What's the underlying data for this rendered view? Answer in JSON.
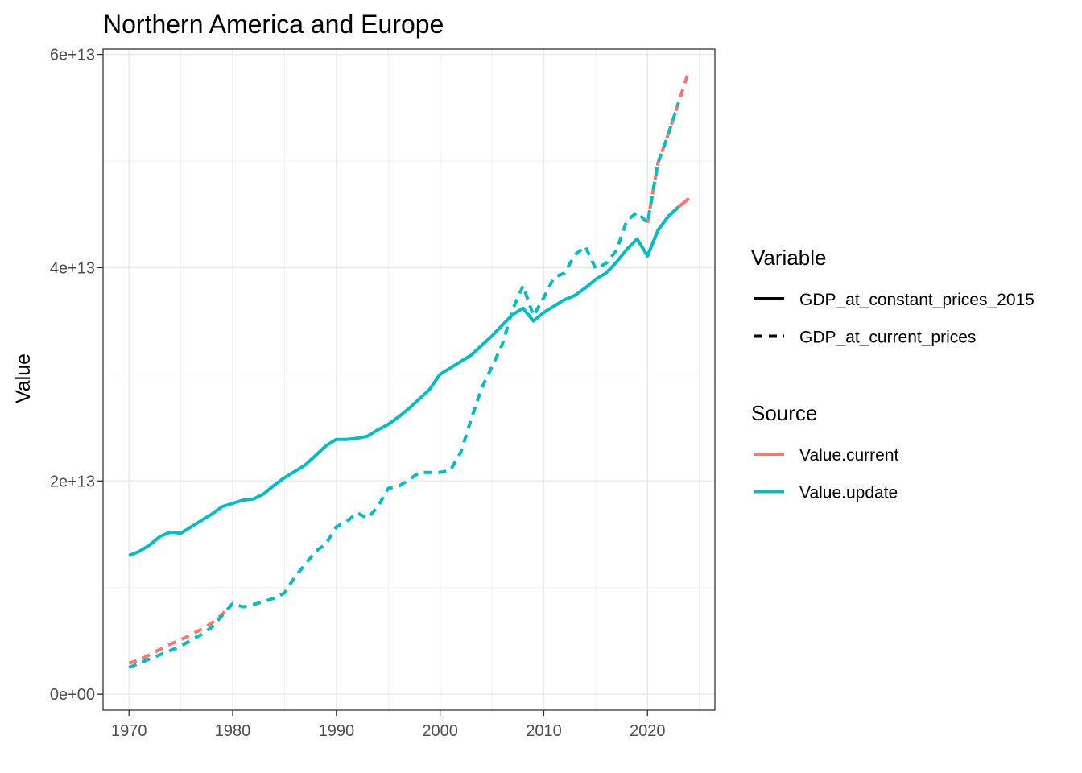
{
  "chart_data": {
    "type": "line",
    "title": "Northern America and Europe",
    "xlabel": "",
    "ylabel": "Value",
    "xlim": [
      1967.5,
      2026.5
    ],
    "ylim": [
      -1500000000000.0,
      60500000000000.0
    ],
    "x_ticks": [
      1970,
      1980,
      1990,
      2000,
      2010,
      2020
    ],
    "x_tick_labels": [
      "1970",
      "1980",
      "1990",
      "2000",
      "2010",
      "2020"
    ],
    "y_ticks": [
      0,
      20000000000000.0,
      40000000000000.0,
      60000000000000.0
    ],
    "y_tick_labels": [
      "0e+00",
      "2e+13",
      "4e+13",
      "6e+13"
    ],
    "grid": true,
    "legend_position": "right",
    "legends": {
      "variable": {
        "title": "Variable",
        "entries": [
          {
            "label": "GDP_at_constant_prices_2015",
            "linetype": "solid"
          },
          {
            "label": "GDP_at_current_prices",
            "linetype": "dashed"
          }
        ]
      },
      "source": {
        "title": "Source",
        "entries": [
          {
            "label": "Value.current",
            "color": "#F8766D"
          },
          {
            "label": "Value.update",
            "color": "#00BFC4"
          }
        ]
      }
    },
    "series": [
      {
        "variable": "GDP_at_constant_prices_2015",
        "source": "Value.current",
        "color": "#F8766D",
        "linetype": "solid",
        "x": [
          2020,
          2021,
          2022,
          2023,
          2024
        ],
        "y": [
          41100000000000.0,
          43500000000000.0,
          44800000000000.0,
          45700000000000.0,
          46500000000000.0
        ]
      },
      {
        "variable": "GDP_at_current_prices",
        "source": "Value.current",
        "color": "#F8766D",
        "linetype": "dashed",
        "x": [
          1970,
          1971,
          1972,
          1973,
          1974,
          1975,
          1976,
          1977,
          1978,
          1979,
          1980,
          2020,
          2021,
          2022,
          2023,
          2024
        ],
        "y": [
          2900000000000.0,
          3200000000000.0,
          3700000000000.0,
          4200000000000.0,
          4700000000000.0,
          5100000000000.0,
          5600000000000.0,
          6100000000000.0,
          6700000000000.0,
          7500000000000.0,
          8500000000000.0,
          44200000000000.0,
          49800000000000.0,
          52500000000000.0,
          55500000000000.0,
          58500000000000.0
        ]
      },
      {
        "variable": "GDP_at_constant_prices_2015",
        "source": "Value.update",
        "color": "#00BFC4",
        "linetype": "solid",
        "x": [
          1970,
          1971,
          1972,
          1973,
          1974,
          1975,
          1976,
          1977,
          1978,
          1979,
          1980,
          1981,
          1982,
          1983,
          1984,
          1985,
          1986,
          1987,
          1988,
          1989,
          1990,
          1991,
          1992,
          1993,
          1994,
          1995,
          1996,
          1997,
          1998,
          1999,
          2000,
          2001,
          2002,
          2003,
          2004,
          2005,
          2006,
          2007,
          2008,
          2009,
          2010,
          2011,
          2012,
          2013,
          2014,
          2015,
          2016,
          2017,
          2018,
          2019,
          2020,
          2021,
          2022,
          2023
        ],
        "y": [
          13000000000000.0,
          13400000000000.0,
          14000000000000.0,
          14800000000000.0,
          15200000000000.0,
          15100000000000.0,
          15700000000000.0,
          16300000000000.0,
          16900000000000.0,
          17600000000000.0,
          17900000000000.0,
          18200000000000.0,
          18300000000000.0,
          18800000000000.0,
          19600000000000.0,
          20300000000000.0,
          20900000000000.0,
          21500000000000.0,
          22400000000000.0,
          23300000000000.0,
          23900000000000.0,
          23900000000000.0,
          24000000000000.0,
          24200000000000.0,
          24800000000000.0,
          25300000000000.0,
          26000000000000.0,
          26800000000000.0,
          27700000000000.0,
          28600000000000.0,
          30000000000000.0,
          30600000000000.0,
          31200000000000.0,
          31800000000000.0,
          32700000000000.0,
          33600000000000.0,
          34600000000000.0,
          35600000000000.0,
          36200000000000.0,
          35000000000000.0,
          35800000000000.0,
          36400000000000.0,
          37000000000000.0,
          37400000000000.0,
          38100000000000.0,
          38900000000000.0,
          39500000000000.0,
          40500000000000.0,
          41700000000000.0,
          42700000000000.0,
          41100000000000.0,
          43500000000000.0,
          44800000000000.0,
          45700000000000.0
        ]
      },
      {
        "variable": "GDP_at_current_prices",
        "source": "Value.update",
        "color": "#00BFC4",
        "linetype": "dashed",
        "x": [
          1970,
          1971,
          1972,
          1973,
          1974,
          1975,
          1976,
          1977,
          1978,
          1979,
          1980,
          1981,
          1982,
          1983,
          1984,
          1985,
          1986,
          1987,
          1988,
          1989,
          1990,
          1991,
          1992,
          1993,
          1994,
          1995,
          1996,
          1997,
          1998,
          1999,
          2000,
          2001,
          2002,
          2003,
          2004,
          2005,
          2006,
          2007,
          2008,
          2009,
          2010,
          2011,
          2012,
          2013,
          2014,
          2015,
          2016,
          2017,
          2018,
          2019,
          2020,
          2021,
          2022,
          2023
        ],
        "y": [
          2500000000000.0,
          2900000000000.0,
          3300000000000.0,
          3700000000000.0,
          4100000000000.0,
          4500000000000.0,
          5100000000000.0,
          5600000000000.0,
          6300000000000.0,
          7400000000000.0,
          8500000000000.0,
          8200000000000.0,
          8400000000000.0,
          8700000000000.0,
          9000000000000.0,
          9500000000000.0,
          11000000000000.0,
          12200000000000.0,
          13400000000000.0,
          14100000000000.0,
          15700000000000.0,
          16200000000000.0,
          17000000000000.0,
          16500000000000.0,
          17600000000000.0,
          19300000000000.0,
          19500000000000.0,
          20100000000000.0,
          20800000000000.0,
          20800000000000.0,
          20800000000000.0,
          21000000000000.0,
          22700000000000.0,
          25800000000000.0,
          28700000000000.0,
          30700000000000.0,
          32800000000000.0,
          36100000000000.0,
          38300000000000.0,
          35500000000000.0,
          37200000000000.0,
          39100000000000.0,
          39500000000000.0,
          41200000000000.0,
          42000000000000.0,
          39900000000000.0,
          40400000000000.0,
          41600000000000.0,
          44400000000000.0,
          45200000000000.0,
          44200000000000.0,
          49800000000000.0,
          52500000000000.0,
          55500000000000.0
        ]
      }
    ]
  }
}
